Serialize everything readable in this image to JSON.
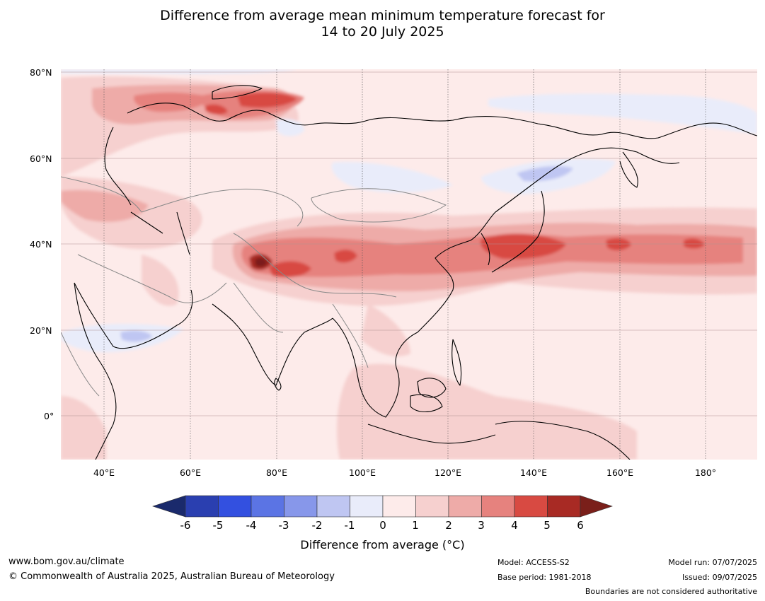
{
  "title": {
    "line1": "Difference from average mean minimum temperature forecast for",
    "line2": "14 to 20 July 2025"
  },
  "map": {
    "lat_labels": [
      "80°N",
      "60°N",
      "40°N",
      "20°N",
      "0°"
    ],
    "lon_labels": [
      "40°E",
      "60°E",
      "80°E",
      "100°E",
      "120°E",
      "140°E",
      "160°E",
      "180°"
    ],
    "gridlines": true,
    "background_class": "0 to 1",
    "features": [
      {
        "name": "warm-band-north-china-japan-pacific",
        "class": "2 to 4",
        "peak_class": "4 to 5"
      },
      {
        "name": "warm-anomaly-tibet-west",
        "class": "3 to 5",
        "peak_class": "above 6"
      },
      {
        "name": "warm-anomaly-northwest-russia",
        "class": "2 to 4",
        "peak_class": "4 to 5"
      },
      {
        "name": "cool-anomaly-northeast-china",
        "class": "-2 to 0"
      },
      {
        "name": "cool-anomaly-arabian-sea",
        "class": "-2 to 0"
      }
    ]
  },
  "colorbar": {
    "title": "Difference from average (°C)",
    "ticks": [
      "-6",
      "-5",
      "-4",
      "-3",
      "-2",
      "-1",
      "0",
      "1",
      "2",
      "3",
      "4",
      "5",
      "6"
    ],
    "under_color": "#1a2a6c",
    "over_color": "#7a1f1a",
    "colors": [
      "#2a3fb0",
      "#3350e0",
      "#5b74e4",
      "#8797ea",
      "#bfc6f2",
      "#e9ecfa",
      "#fdebea",
      "#f6d0cf",
      "#eeaba8",
      "#e6827e",
      "#d84a42",
      "#a82a24"
    ]
  },
  "footer": {
    "url": "www.bom.gov.au/climate",
    "copyright": "© Commonwealth of Australia 2025, Australian Bureau of Meteorology",
    "model": "Model: ACCESS-S2",
    "base_period": "Base period: 1981-2018",
    "model_run": "Model run: 07/07/2025",
    "issued": "Issued: 09/07/2025",
    "disclaimer": "Boundaries are not considered authoritative"
  }
}
